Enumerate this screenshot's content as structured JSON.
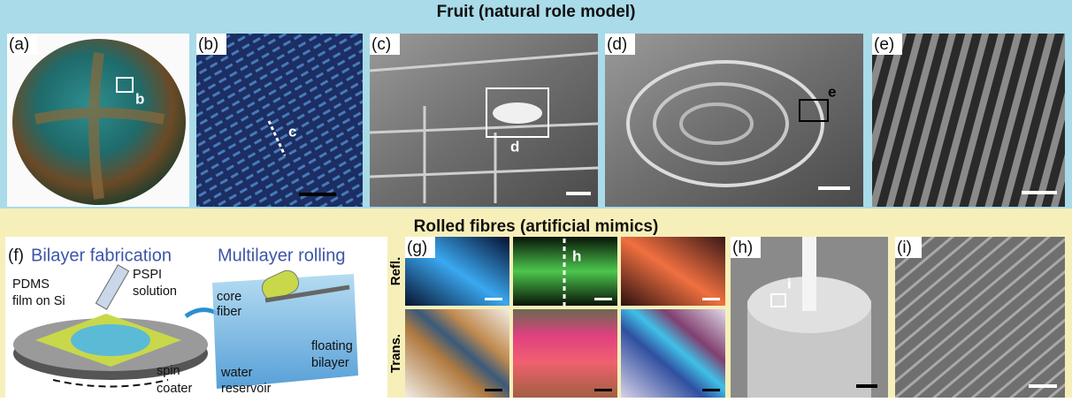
{
  "header_top": "Fruit (natural role model)",
  "header_bottom": "Rolled fibres (artificial mimics)",
  "panel_labels": [
    "(a)",
    "(b)",
    "(c)",
    "(d)",
    "(e)",
    "(f)",
    "(g)",
    "(h)",
    "(i)"
  ],
  "inset_labels": {
    "a": "b",
    "b": "c",
    "c": "d",
    "d": "e",
    "g": "h",
    "h": "i"
  },
  "panel_f": {
    "titles": [
      "Bilayer fabrication",
      "Multilayer rolling"
    ],
    "labels": {
      "pdms": [
        "PDMS",
        "film on Si"
      ],
      "pspi": [
        "PSPI",
        "solution"
      ],
      "spin": [
        "spin",
        "coater"
      ],
      "core": [
        "core",
        "fiber"
      ],
      "water": [
        "water",
        "reservoir"
      ],
      "floating": [
        "floating",
        "bilayer"
      ]
    }
  },
  "panel_g": {
    "rows": [
      "Refl.",
      "Trans."
    ]
  }
}
